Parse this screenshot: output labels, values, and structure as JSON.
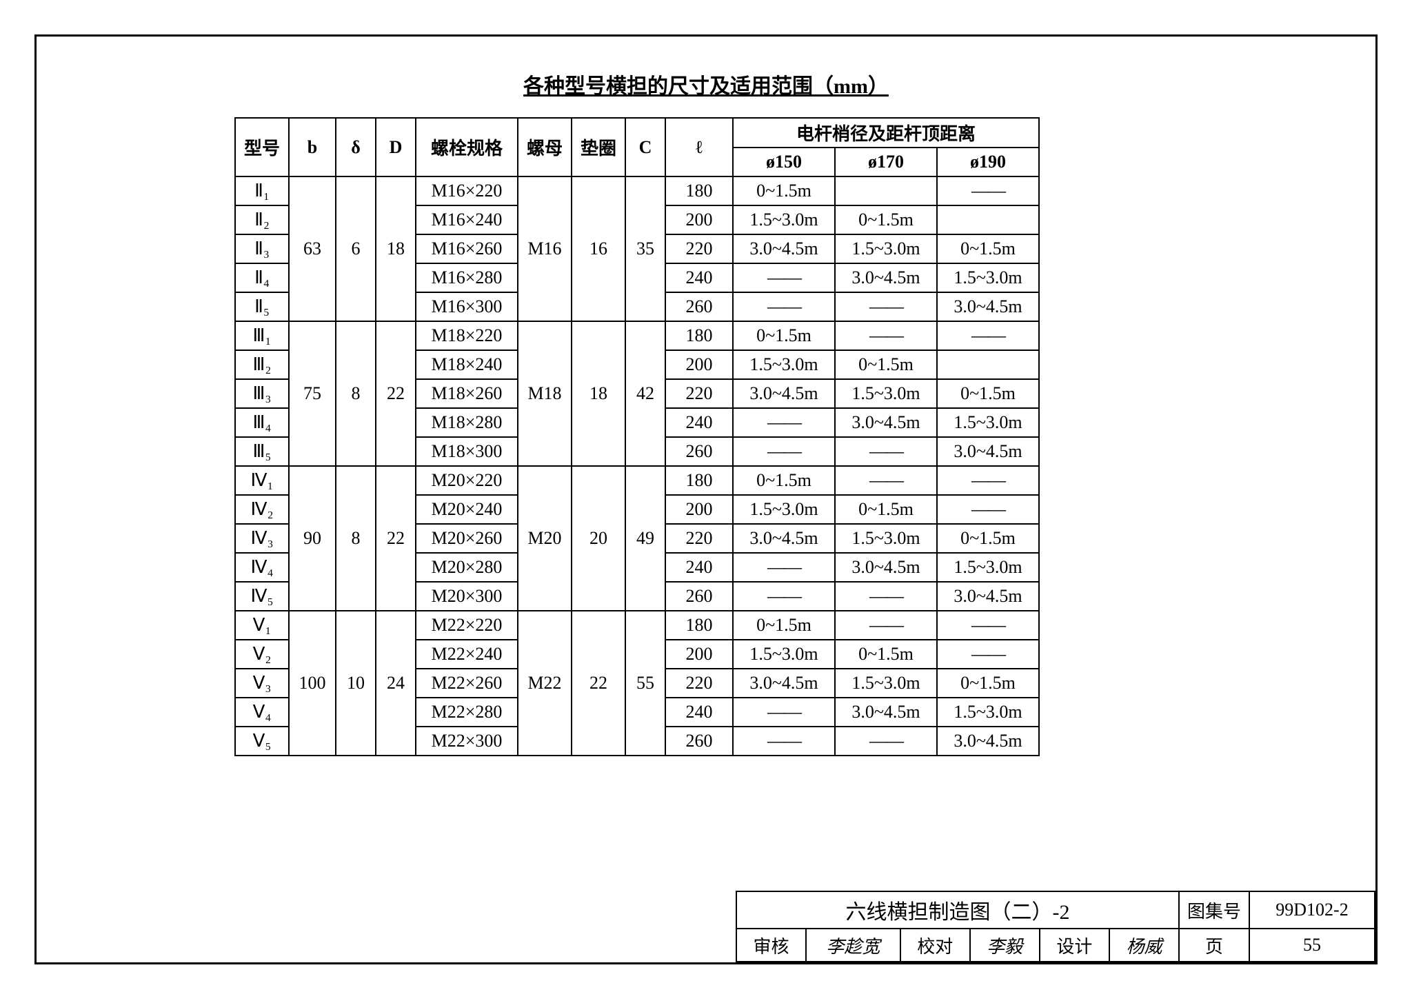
{
  "title": "各种型号横担的尺寸及适用范围（mm）",
  "headers": {
    "model": "型号",
    "b": "b",
    "delta": "δ",
    "D": "D",
    "bolt": "螺栓规格",
    "nut": "螺母",
    "washer": "垫圈",
    "C": "C",
    "l": "ℓ",
    "pole": "电杆梢径及距杆顶距离",
    "d150": "ø150",
    "d170": "ø170",
    "d190": "ø190"
  },
  "groups": [
    {
      "b": "63",
      "delta": "6",
      "D": "18",
      "nut": "M16",
      "washer": "16",
      "C": "35",
      "rows": [
        {
          "model": "Ⅱ₁",
          "bolt": "M16×220",
          "l": "180",
          "d150": "0~1.5m",
          "d170": "",
          "d190": "——"
        },
        {
          "model": "Ⅱ₂",
          "bolt": "M16×240",
          "l": "200",
          "d150": "1.5~3.0m",
          "d170": "0~1.5m",
          "d190": ""
        },
        {
          "model": "Ⅱ₃",
          "bolt": "M16×260",
          "l": "220",
          "d150": "3.0~4.5m",
          "d170": "1.5~3.0m",
          "d190": "0~1.5m"
        },
        {
          "model": "Ⅱ₄",
          "bolt": "M16×280",
          "l": "240",
          "d150": "——",
          "d170": "3.0~4.5m",
          "d190": "1.5~3.0m"
        },
        {
          "model": "Ⅱ₅",
          "bolt": "M16×300",
          "l": "260",
          "d150": "——",
          "d170": "——",
          "d190": "3.0~4.5m"
        }
      ]
    },
    {
      "b": "75",
      "delta": "8",
      "D": "22",
      "nut": "M18",
      "washer": "18",
      "C": "42",
      "rows": [
        {
          "model": "Ⅲ₁",
          "bolt": "M18×220",
          "l": "180",
          "d150": "0~1.5m",
          "d170": "——",
          "d190": "——"
        },
        {
          "model": "Ⅲ₂",
          "bolt": "M18×240",
          "l": "200",
          "d150": "1.5~3.0m",
          "d170": "0~1.5m",
          "d190": ""
        },
        {
          "model": "Ⅲ₃",
          "bolt": "M18×260",
          "l": "220",
          "d150": "3.0~4.5m",
          "d170": "1.5~3.0m",
          "d190": "0~1.5m"
        },
        {
          "model": "Ⅲ₄",
          "bolt": "M18×280",
          "l": "240",
          "d150": "——",
          "d170": "3.0~4.5m",
          "d190": "1.5~3.0m"
        },
        {
          "model": "Ⅲ₅",
          "bolt": "M18×300",
          "l": "260",
          "d150": "——",
          "d170": "——",
          "d190": "3.0~4.5m"
        }
      ]
    },
    {
      "b": "90",
      "delta": "8",
      "D": "22",
      "nut": "M20",
      "washer": "20",
      "C": "49",
      "rows": [
        {
          "model": "Ⅳ₁",
          "bolt": "M20×220",
          "l": "180",
          "d150": "0~1.5m",
          "d170": "——",
          "d190": "——"
        },
        {
          "model": "Ⅳ₂",
          "bolt": "M20×240",
          "l": "200",
          "d150": "1.5~3.0m",
          "d170": "0~1.5m",
          "d190": "——"
        },
        {
          "model": "Ⅳ₃",
          "bolt": "M20×260",
          "l": "220",
          "d150": "3.0~4.5m",
          "d170": "1.5~3.0m",
          "d190": "0~1.5m"
        },
        {
          "model": "Ⅳ₄",
          "bolt": "M20×280",
          "l": "240",
          "d150": "——",
          "d170": "3.0~4.5m",
          "d190": "1.5~3.0m"
        },
        {
          "model": "Ⅳ₅",
          "bolt": "M20×300",
          "l": "260",
          "d150": "——",
          "d170": "——",
          "d190": "3.0~4.5m"
        }
      ]
    },
    {
      "b": "100",
      "delta": "10",
      "D": "24",
      "nut": "M22",
      "washer": "22",
      "C": "55",
      "rows": [
        {
          "model": "Ⅴ₁",
          "bolt": "M22×220",
          "l": "180",
          "d150": "0~1.5m",
          "d170": "——",
          "d190": "——"
        },
        {
          "model": "Ⅴ₂",
          "bolt": "M22×240",
          "l": "200",
          "d150": "1.5~3.0m",
          "d170": "0~1.5m",
          "d190": "——"
        },
        {
          "model": "Ⅴ₃",
          "bolt": "M22×260",
          "l": "220",
          "d150": "3.0~4.5m",
          "d170": "1.5~3.0m",
          "d190": "0~1.5m"
        },
        {
          "model": "Ⅴ₄",
          "bolt": "M22×280",
          "l": "240",
          "d150": "——",
          "d170": "3.0~4.5m",
          "d190": "1.5~3.0m"
        },
        {
          "model": "Ⅴ₅",
          "bolt": "M22×300",
          "l": "260",
          "d150": "——",
          "d170": "——",
          "d190": "3.0~4.5m"
        }
      ]
    }
  ],
  "title_block": {
    "drawing_name": "六线横担制造图（二）-2",
    "series_label": "图集号",
    "series_no": "99D102-2",
    "review_label": "审核",
    "review_name": "李趁宽",
    "check_label": "校对",
    "check_name": "李毅",
    "design_label": "设计",
    "design_name": "杨威",
    "page_label": "页",
    "page_no": "55"
  }
}
